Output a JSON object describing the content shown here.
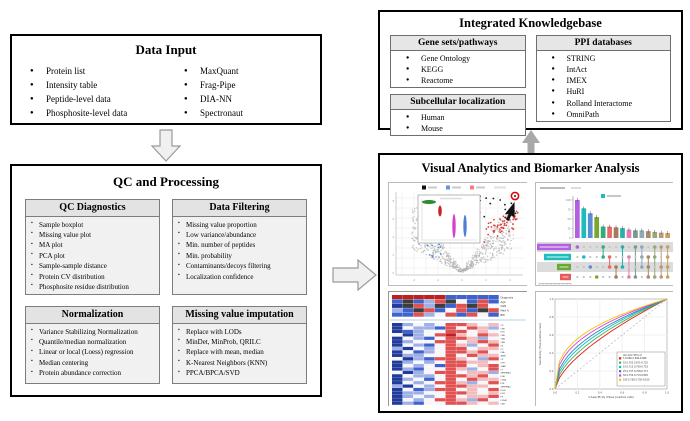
{
  "diagram": {
    "data_input": {
      "title": "Data Input",
      "col1": [
        "Protein list",
        "Intensity table",
        "Peptide-level data",
        "Phosphosite-level data"
      ],
      "col2": [
        "MaxQuant",
        "Frag-Pipe",
        "DIA-NN",
        "Spectronaut"
      ]
    },
    "qc_processing": {
      "title": "QC and Processing",
      "panels": [
        {
          "title": "QC Diagnostics",
          "items": [
            "Sample boxplot",
            "Missing value plot",
            "MA plot",
            "PCA plot",
            "Sample-sample distance",
            "Protein CV distribution",
            "Phosphosite residue distribution"
          ]
        },
        {
          "title": "Data Filtering",
          "items": [
            "Missing value proportion",
            "Low variance/abundance",
            "Min. number of peptides",
            "Min. probability",
            "Contaminants/decoys filtering",
            "Localization confidence"
          ]
        },
        {
          "title": "Normalization",
          "items": [
            "Variance Stabilizing Normalization",
            "Quantile/median normalization",
            "Linear or local (Loess) regression",
            "Median centering",
            "Protein abundance correction"
          ]
        },
        {
          "title": "Missing value imputation",
          "items": [
            "Replace with LODs",
            "MinDet, MinProb, QRILC",
            "Replace with mean, median",
            "K-Nearest Neighbors (KNN)",
            "PPCA/BPCA/SVD"
          ]
        }
      ]
    },
    "knowledgebase": {
      "title": "Integrated Knowledgebase",
      "panels": [
        {
          "title": "Gene sets/pathways",
          "items": [
            "Gene Ontology",
            "KEGG",
            "Reactome"
          ]
        },
        {
          "title": "Subcellular localization",
          "items": [
            "Human",
            "Mouse"
          ]
        },
        {
          "title": "PPI databases",
          "items": [
            "STRING",
            "IntAct",
            "IMEX",
            "HuRI",
            "Rolland Interactome",
            "OmniPath"
          ]
        }
      ]
    },
    "visual_analytics": {
      "title": "Visual Analytics and Biomarker Analysis"
    }
  },
  "thumbnails": {
    "volcano": {
      "name": "volcano-plot-with-violin-inset",
      "seed": 13,
      "n_gray": 650,
      "n_red": 55,
      "n_black": 14,
      "n_blue": 10,
      "gray": "#b3b3b3",
      "red": "#e03c3c",
      "black": "#1a1a1a",
      "blue": "#5b8dd6",
      "legend_colors": [
        "#111111",
        "#6b8fe8",
        "#f08080"
      ],
      "violin_colors": [
        "#2e8b2e",
        "#cc2222",
        "#d63fd0",
        "#4f7fd0"
      ],
      "cursor_ring_color": "#dd0000"
    },
    "upset": {
      "name": "upset-intersection-plot",
      "bar_values": [
        100,
        78,
        65,
        55,
        30,
        30,
        28,
        26,
        22,
        20,
        20,
        18,
        16,
        14,
        13
      ],
      "bar_colors": [
        "#b45fe0",
        "#1dbdbd",
        "#5b8dd6",
        "#7aa82c",
        "#2eb07a",
        "#e86a6a",
        "#a8795a",
        "#27b0a8",
        "#e87ab0",
        "#7a9a8a",
        "#8fa8b8",
        "#a88a6a",
        "#98a878",
        "#b89a7a",
        "#c8a060"
      ],
      "y_ticks": [
        "0",
        "25",
        "50",
        "75",
        "100"
      ],
      "set_bar_widths": [
        34,
        27,
        14,
        11
      ],
      "set_bar_colors": [
        "#b45fe0",
        "#1dbdbd",
        "#6aa832",
        "#e85a5a"
      ],
      "matrix_members": [
        [
          0
        ],
        [
          1
        ],
        [
          2
        ],
        [
          3
        ],
        [
          0,
          1
        ],
        [
          1,
          2
        ],
        [
          2,
          3
        ],
        [
          0,
          2
        ],
        [
          1,
          3
        ],
        [
          0,
          3
        ],
        [
          0,
          1,
          2
        ],
        [
          1,
          2,
          3
        ],
        [
          0,
          1,
          3
        ],
        [
          0,
          2,
          3
        ],
        [
          0,
          1,
          2,
          3
        ]
      ],
      "band_color": "#dcdcdc",
      "inactive_dot": "#c4c4c4",
      "legend_color": "#1dbdbd"
    },
    "heatmap": {
      "name": "expression-heatmap",
      "palette": {
        "B": "#1f3b9b",
        "b": "#3f63cc",
        "l": "#9fb0e6",
        "w": "#f7f7fb",
        "p": "#f3bcbc",
        "r": "#e05252",
        "R": "#c01f1f",
        "k": "#3d3d3d"
      },
      "separator_color": "#9fc5e8",
      "annotation_labels": [
        "Diagnosis",
        "Age",
        "GSN",
        "Med %",
        "BW"
      ],
      "annotation_rows": [
        "RRRRRbbbbb",
        "bkblrkwbrb",
        "Bkrlkbrkrw",
        "lbkrbwrbkr",
        "bbrlwrbrwb"
      ],
      "row_labels": [
        "C9",
        "CFB",
        "PLG",
        "C8B",
        "C8A",
        "C4A",
        "C6",
        "C3",
        "F5A",
        "ANGT",
        "C5",
        "CFH",
        "STAB",
        "C7",
        "SERPINA3",
        "FGB",
        "CD44",
        "FGF",
        "SERPINA1",
        "PLG2",
        "FGG",
        "F9",
        "F13A1",
        "C4B"
      ],
      "rows": [
        "Blwlwrrpwp",
        "Bwllbrwrpl",
        "Bblwwrrwpw",
        "wBlwrRpwrp",
        "Bwlbwrrplw",
        "Blwwrrwprp",
        "Bwlbwrplwr",
        "lBwlwrrwpp",
        "Bwblwrrprw",
        "Bllwwrwrpp",
        "wBlbrrpwlr",
        "Blwlwrrppw",
        "Bwlwbrrwpr",
        "Blbwwrplwr",
        "wBlwrrwppl",
        "Bwllwrrprw",
        "Blwbwrwrpp",
        "Bwlwrrplwr",
        "lBwlwrrppw",
        "Bwblrrwpwr",
        "Bllwwrrpwp",
        "Blwlwrwppr",
        "Bwlwrrplrw",
        "Blbwwrrpwp"
      ]
    },
    "roc": {
      "name": "roc-curves",
      "curves": [
        {
          "color": "#e41a1c",
          "bulge": 1.55
        },
        {
          "color": "#4daf4a",
          "bulge": 1.75
        },
        {
          "color": "#00c5cd",
          "bulge": 1.95
        },
        {
          "color": "#377eb8",
          "bulge": 2.15
        },
        {
          "color": "#e03fd8",
          "bulge": 2.45
        },
        {
          "color": "#f2c500",
          "bulge": 2.75
        }
      ],
      "diagonal_color": "#aaaaaa",
      "xlabel": "1-Specificity (False positive rate)",
      "ylabel": "Sensitivity (True positive rate)",
      "ticks": [
        "0.0",
        "0.2",
        "0.4",
        "0.6",
        "0.8",
        "1.0"
      ],
      "legend_header": "Var  AUC  95% CI",
      "legend_rows": [
        "5  0.666  0.646-0.686",
        "10  0.703  0.671-0.725",
        "15  0.713  0.700-0.753",
        "25  0.737  0.708-0.771",
        "50  0.750  0.713-0.805",
        "100  0.758  0.750-0.810"
      ]
    }
  }
}
